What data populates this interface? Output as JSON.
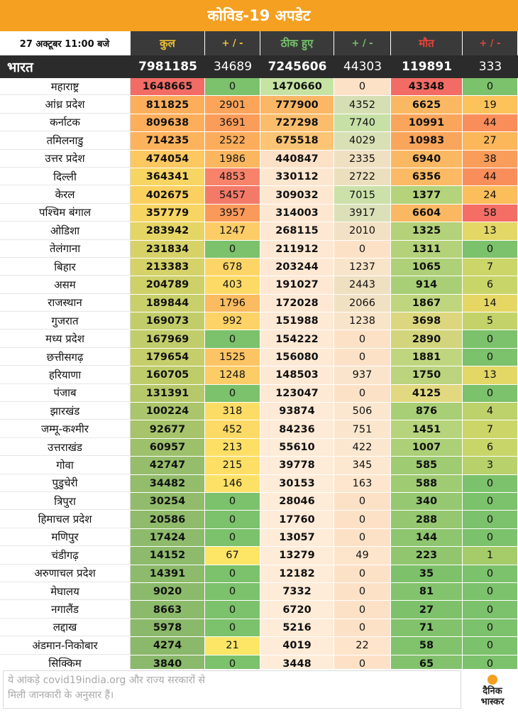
{
  "header": {
    "title": "कोविड-19 अपडेट",
    "date": "27 अक्टूबर 11:00 बजे",
    "columns": [
      "कुल",
      "+ / -",
      "ठीक हुए",
      "+ / -",
      "मौत",
      "+ / -"
    ]
  },
  "total": {
    "name": "भारत",
    "values": [
      "7981185",
      "34689",
      "7245606",
      "44303",
      "119891",
      "333"
    ]
  },
  "states": [
    {
      "name": "महाराष्ट्र",
      "values": [
        "1648665",
        "0",
        "1470660",
        "0",
        "43348",
        "0"
      ],
      "colors": [
        "#f26b65",
        "#7cc16b",
        "#c6e3a4",
        "#fde1c7",
        "#f26b65",
        "#7cc16b"
      ]
    },
    {
      "name": "आंध्र प्रदेश",
      "values": [
        "811825",
        "2901",
        "777900",
        "4352",
        "6625",
        "19"
      ],
      "colors": [
        "#fcae5b",
        "#fba45a",
        "#fbb765",
        "#d6dfb4",
        "#fbb862",
        "#fcc35b"
      ]
    },
    {
      "name": "कर्नाटक",
      "values": [
        "809638",
        "3691",
        "727298",
        "7740",
        "10991",
        "44"
      ],
      "colors": [
        "#fcae5b",
        "#fa9c5a",
        "#fbbd6c",
        "#c7e0a6",
        "#f9a55b",
        "#fa8e5a"
      ]
    },
    {
      "name": "तमिलनाडु",
      "values": [
        "714235",
        "2522",
        "675518",
        "4029",
        "10983",
        "27"
      ],
      "colors": [
        "#fcb35c",
        "#fbad5c",
        "#fcc474",
        "#d9e0b6",
        "#f9a55b",
        "#fbb75a"
      ]
    },
    {
      "name": "उत्तर प्रदेश",
      "values": [
        "474054",
        "1986",
        "440847",
        "2335",
        "6940",
        "38"
      ],
      "colors": [
        "#fdc860",
        "#fbb660",
        "#fde1c7",
        "#f0e0c2",
        "#fbb862",
        "#fa9d5a"
      ]
    },
    {
      "name": "दिल्ली",
      "values": [
        "364341",
        "4853",
        "330112",
        "2722",
        "6356",
        "44"
      ],
      "colors": [
        "#f7d563",
        "#f6836a",
        "#fde6d0",
        "#ebdfbe",
        "#fbba63",
        "#fa8e5a"
      ]
    },
    {
      "name": "केरल",
      "values": [
        "402675",
        "5457",
        "309032",
        "7015",
        "1377",
        "24"
      ],
      "colors": [
        "#fcd060",
        "#f37a68",
        "#fee7d1",
        "#cbe1a9",
        "#b4d37a",
        "#fcbd5b"
      ]
    },
    {
      "name": "पश्चिम बंगाल",
      "values": [
        "357779",
        "3957",
        "314003",
        "3917",
        "6604",
        "58"
      ],
      "colors": [
        "#f7d563",
        "#fa9a5a",
        "#fee7d1",
        "#dbe0b8",
        "#fbb862",
        "#f56e66"
      ]
    },
    {
      "name": "ओडिशा",
      "values": [
        "283942",
        "1247",
        "268115",
        "2010",
        "1325",
        "13"
      ],
      "colors": [
        "#e5d565",
        "#fccc67",
        "#fee8d3",
        "#f2e1c4",
        "#b3d279",
        "#e3d765"
      ]
    },
    {
      "name": "तेलंगाना",
      "values": [
        "231834",
        "0",
        "211912",
        "0",
        "1311",
        "0"
      ],
      "colors": [
        "#d6d268",
        "#7cc16b",
        "#fee8d3",
        "#fde1c7",
        "#b3d279",
        "#7cc16b"
      ]
    },
    {
      "name": "बिहार",
      "values": [
        "213383",
        "678",
        "203244",
        "1237",
        "1065",
        "7"
      ],
      "colors": [
        "#d4d268",
        "#fdd567",
        "#fee8d3",
        "#f8e4c9",
        "#aed078",
        "#cbd568"
      ]
    },
    {
      "name": "असम",
      "values": [
        "204789",
        "403",
        "191027",
        "2443",
        "914",
        "6"
      ],
      "colors": [
        "#ced068",
        "#fdda66",
        "#fee8d3",
        "#eee0c1",
        "#a8cf76",
        "#c8d569"
      ]
    },
    {
      "name": "राजस्थान",
      "values": [
        "189844",
        "1796",
        "172028",
        "2066",
        "1867",
        "14"
      ],
      "colors": [
        "#c9cf6a",
        "#fbbb61",
        "#fee8d3",
        "#f1e1c3",
        "#bfd67e",
        "#e6d765"
      ]
    },
    {
      "name": "गुजरात",
      "values": [
        "169073",
        "992",
        "151988",
        "1238",
        "3698",
        "5"
      ],
      "colors": [
        "#c2cd6a",
        "#fdd266",
        "#fee9d5",
        "#f8e4c9",
        "#dcd77e",
        "#c3d36a"
      ]
    },
    {
      "name": "मध्य प्रदेश",
      "values": [
        "167969",
        "0",
        "154222",
        "0",
        "2890",
        "0"
      ],
      "colors": [
        "#c1cd6a",
        "#7cc16b",
        "#fee9d5",
        "#fde1c7",
        "#d2d57c",
        "#7cc16b"
      ]
    },
    {
      "name": "छत्तीसगढ़",
      "values": [
        "179654",
        "1525",
        "156080",
        "0",
        "1881",
        "0"
      ],
      "colors": [
        "#c5ce6a",
        "#fcc464",
        "#fee9d5",
        "#fde1c7",
        "#c0d67e",
        "#7cc16b"
      ]
    },
    {
      "name": "हरियाणा",
      "values": [
        "160705",
        "1248",
        "148503",
        "937",
        "1750",
        "13"
      ],
      "colors": [
        "#bfcc6a",
        "#fccc67",
        "#fee9d5",
        "#fae5cc",
        "#bbd47d",
        "#e3d765"
      ]
    },
    {
      "name": "पंजाब",
      "values": [
        "131391",
        "0",
        "123047",
        "0",
        "4125",
        "0"
      ],
      "colors": [
        "#b5c96b",
        "#7cc16b",
        "#fee9d5",
        "#fde1c7",
        "#e2d87f",
        "#7cc16b"
      ]
    },
    {
      "name": "झारखंड",
      "values": [
        "100224",
        "318",
        "93874",
        "506",
        "876",
        "4"
      ],
      "colors": [
        "#aac56b",
        "#fddc66",
        "#feead6",
        "#fbe7cf",
        "#a8cf76",
        "#bdd26a"
      ]
    },
    {
      "name": "जम्मू-कश्मीर",
      "values": [
        "92677",
        "452",
        "84236",
        "751",
        "1451",
        "7"
      ],
      "colors": [
        "#a7c46b",
        "#fdd966",
        "#feead6",
        "#fbe6cd",
        "#b6d47b",
        "#cbd568"
      ]
    },
    {
      "name": "उत्तराखंड",
      "values": [
        "60957",
        "213",
        "55610",
        "422",
        "1007",
        "6"
      ],
      "colors": [
        "#9dc06b",
        "#fddf66",
        "#feebd8",
        "#fbe7cf",
        "#acd077",
        "#c8d569"
      ]
    },
    {
      "name": "गोवा",
      "values": [
        "42747",
        "215",
        "39778",
        "345",
        "585",
        "3"
      ],
      "colors": [
        "#96bd6b",
        "#fddf66",
        "#feebd8",
        "#fce8d0",
        "#9fcb73",
        "#b8d16a"
      ]
    },
    {
      "name": "पुडुचेरी",
      "values": [
        "34482",
        "146",
        "30153",
        "163",
        "588",
        "0"
      ],
      "colors": [
        "#93bc6b",
        "#fde166",
        "#feebd8",
        "#fde6cd",
        "#9fcb73",
        "#7cc16b"
      ]
    },
    {
      "name": "त्रिपुरा",
      "values": [
        "30254",
        "0",
        "28046",
        "0",
        "340",
        "0"
      ],
      "colors": [
        "#92bc6b",
        "#7cc16b",
        "#feebd8",
        "#fde1c7",
        "#96c871",
        "#7cc16b"
      ]
    },
    {
      "name": "हिमाचल प्रदेश",
      "values": [
        "20586",
        "0",
        "17760",
        "0",
        "288",
        "0"
      ],
      "colors": [
        "#8fbb6b",
        "#7cc16b",
        "#feebd8",
        "#fde1c7",
        "#94c770",
        "#7cc16b"
      ]
    },
    {
      "name": "मणिपुर",
      "values": [
        "17424",
        "0",
        "13057",
        "0",
        "144",
        "0"
      ],
      "colors": [
        "#8ebb6b",
        "#7cc16b",
        "#feebd8",
        "#fde1c7",
        "#8ec56f",
        "#7cc16b"
      ]
    },
    {
      "name": "चंडीगढ़",
      "values": [
        "14152",
        "67",
        "13279",
        "49",
        "223",
        "1"
      ],
      "colors": [
        "#8dba6b",
        "#fde566",
        "#feebd8",
        "#fde5cc",
        "#91c66f",
        "#a6cc6a"
      ]
    },
    {
      "name": "अरुणाचल प्रदेश",
      "values": [
        "14391",
        "0",
        "12182",
        "0",
        "35",
        "0"
      ],
      "colors": [
        "#8dba6b",
        "#7cc16b",
        "#feebd8",
        "#fde1c7",
        "#7ec16b",
        "#7cc16b"
      ]
    },
    {
      "name": "मेघालय",
      "values": [
        "9020",
        "0",
        "7332",
        "0",
        "81",
        "0"
      ],
      "colors": [
        "#8cba6b",
        "#7cc16b",
        "#feebd8",
        "#fde1c7",
        "#84c36d",
        "#7cc16b"
      ]
    },
    {
      "name": "नगालैंड",
      "values": [
        "8663",
        "0",
        "6720",
        "0",
        "27",
        "0"
      ],
      "colors": [
        "#8cba6b",
        "#7cc16b",
        "#feebd8",
        "#fde1c7",
        "#7dc16b",
        "#7cc16b"
      ]
    },
    {
      "name": "लद्दाख",
      "values": [
        "5978",
        "0",
        "5216",
        "0",
        "71",
        "0"
      ],
      "colors": [
        "#8bb96b",
        "#7cc16b",
        "#feebd8",
        "#fde1c7",
        "#83c26c",
        "#7cc16b"
      ]
    },
    {
      "name": "अंडमान-निकोबार",
      "values": [
        "4274",
        "21",
        "4019",
        "22",
        "58",
        "0"
      ],
      "colors": [
        "#8bb96b",
        "#fde666",
        "#feebd8",
        "#fde4ca",
        "#81c26c",
        "#7cc16b"
      ]
    },
    {
      "name": "सिक्किम",
      "values": [
        "3840",
        "0",
        "3448",
        "0",
        "65",
        "0"
      ],
      "colors": [
        "#8bb96b",
        "#7cc16b",
        "#feebd8",
        "#fde1c7",
        "#82c26c",
        "#7cc16b"
      ]
    }
  ],
  "footer": {
    "note_line1": "ये आंकड़े covid19india.org और राज्य सरकारों से",
    "note_line2": "मिली जानकारी के अनुसार हैं।",
    "logo_line1": "दैनिक",
    "logo_line2": "भास्कर"
  },
  "colors": {
    "banner": "#f5a021",
    "header_dark": "#2b2b2b",
    "kul": "#f2c037",
    "theek": "#74c36a",
    "maut": "#e8443c"
  }
}
